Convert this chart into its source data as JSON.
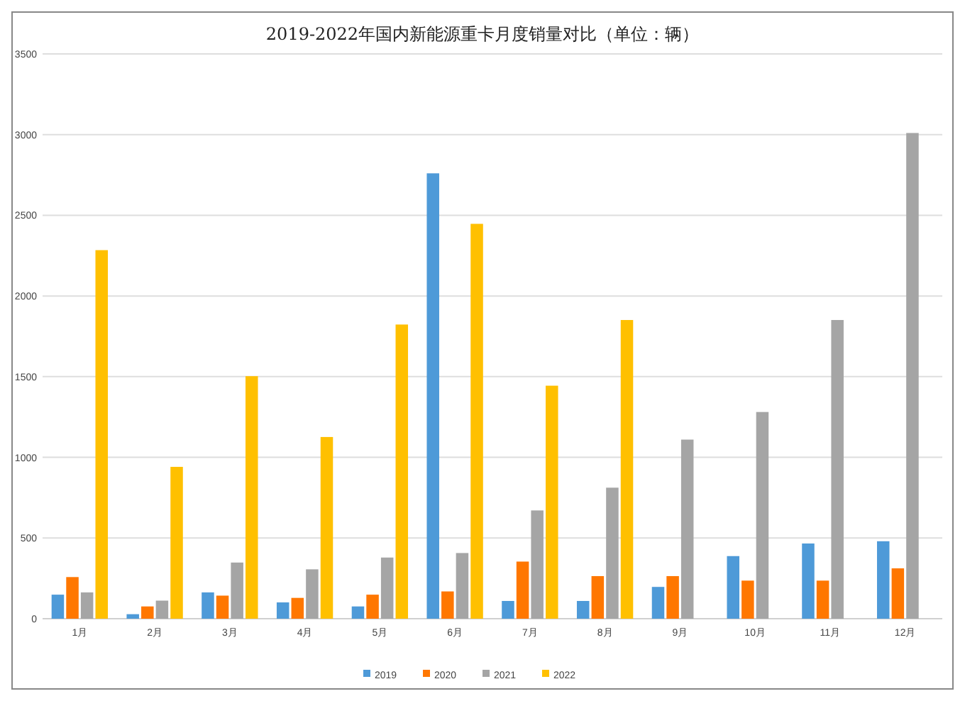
{
  "chart_data": {
    "type": "bar",
    "title": "2019-2022年国内新能源重卡月度销量对比（单位：辆）",
    "categories": [
      "1月",
      "2月",
      "3月",
      "4月",
      "5月",
      "6月",
      "7月",
      "8月",
      "9月",
      "10月",
      "11月",
      "12月"
    ],
    "series": [
      {
        "name": "2019",
        "color": "#4e9ad8",
        "values": [
          149,
          28,
          163,
          101,
          76,
          2760,
          110,
          110,
          197,
          388,
          466,
          480
        ]
      },
      {
        "name": "2020",
        "color": "#ff7700",
        "values": [
          258,
          76,
          143,
          129,
          149,
          169,
          354,
          264,
          264,
          236,
          236,
          312
        ]
      },
      {
        "name": "2021",
        "color": "#a5a5a5",
        "values": [
          163,
          112,
          348,
          306,
          379,
          407,
          671,
          812,
          1110,
          1281,
          1851,
          3010
        ]
      },
      {
        "name": "2022",
        "color": "#ffc000",
        "values": [
          2284,
          941,
          1503,
          1126,
          1823,
          2447,
          1444,
          1851,
          null,
          null,
          null,
          null
        ]
      }
    ],
    "ylim": [
      0,
      3500
    ],
    "yticks": [
      0,
      500,
      1000,
      1500,
      2000,
      2500,
      3000,
      3500
    ],
    "grid": "y",
    "legend": "bottom"
  }
}
